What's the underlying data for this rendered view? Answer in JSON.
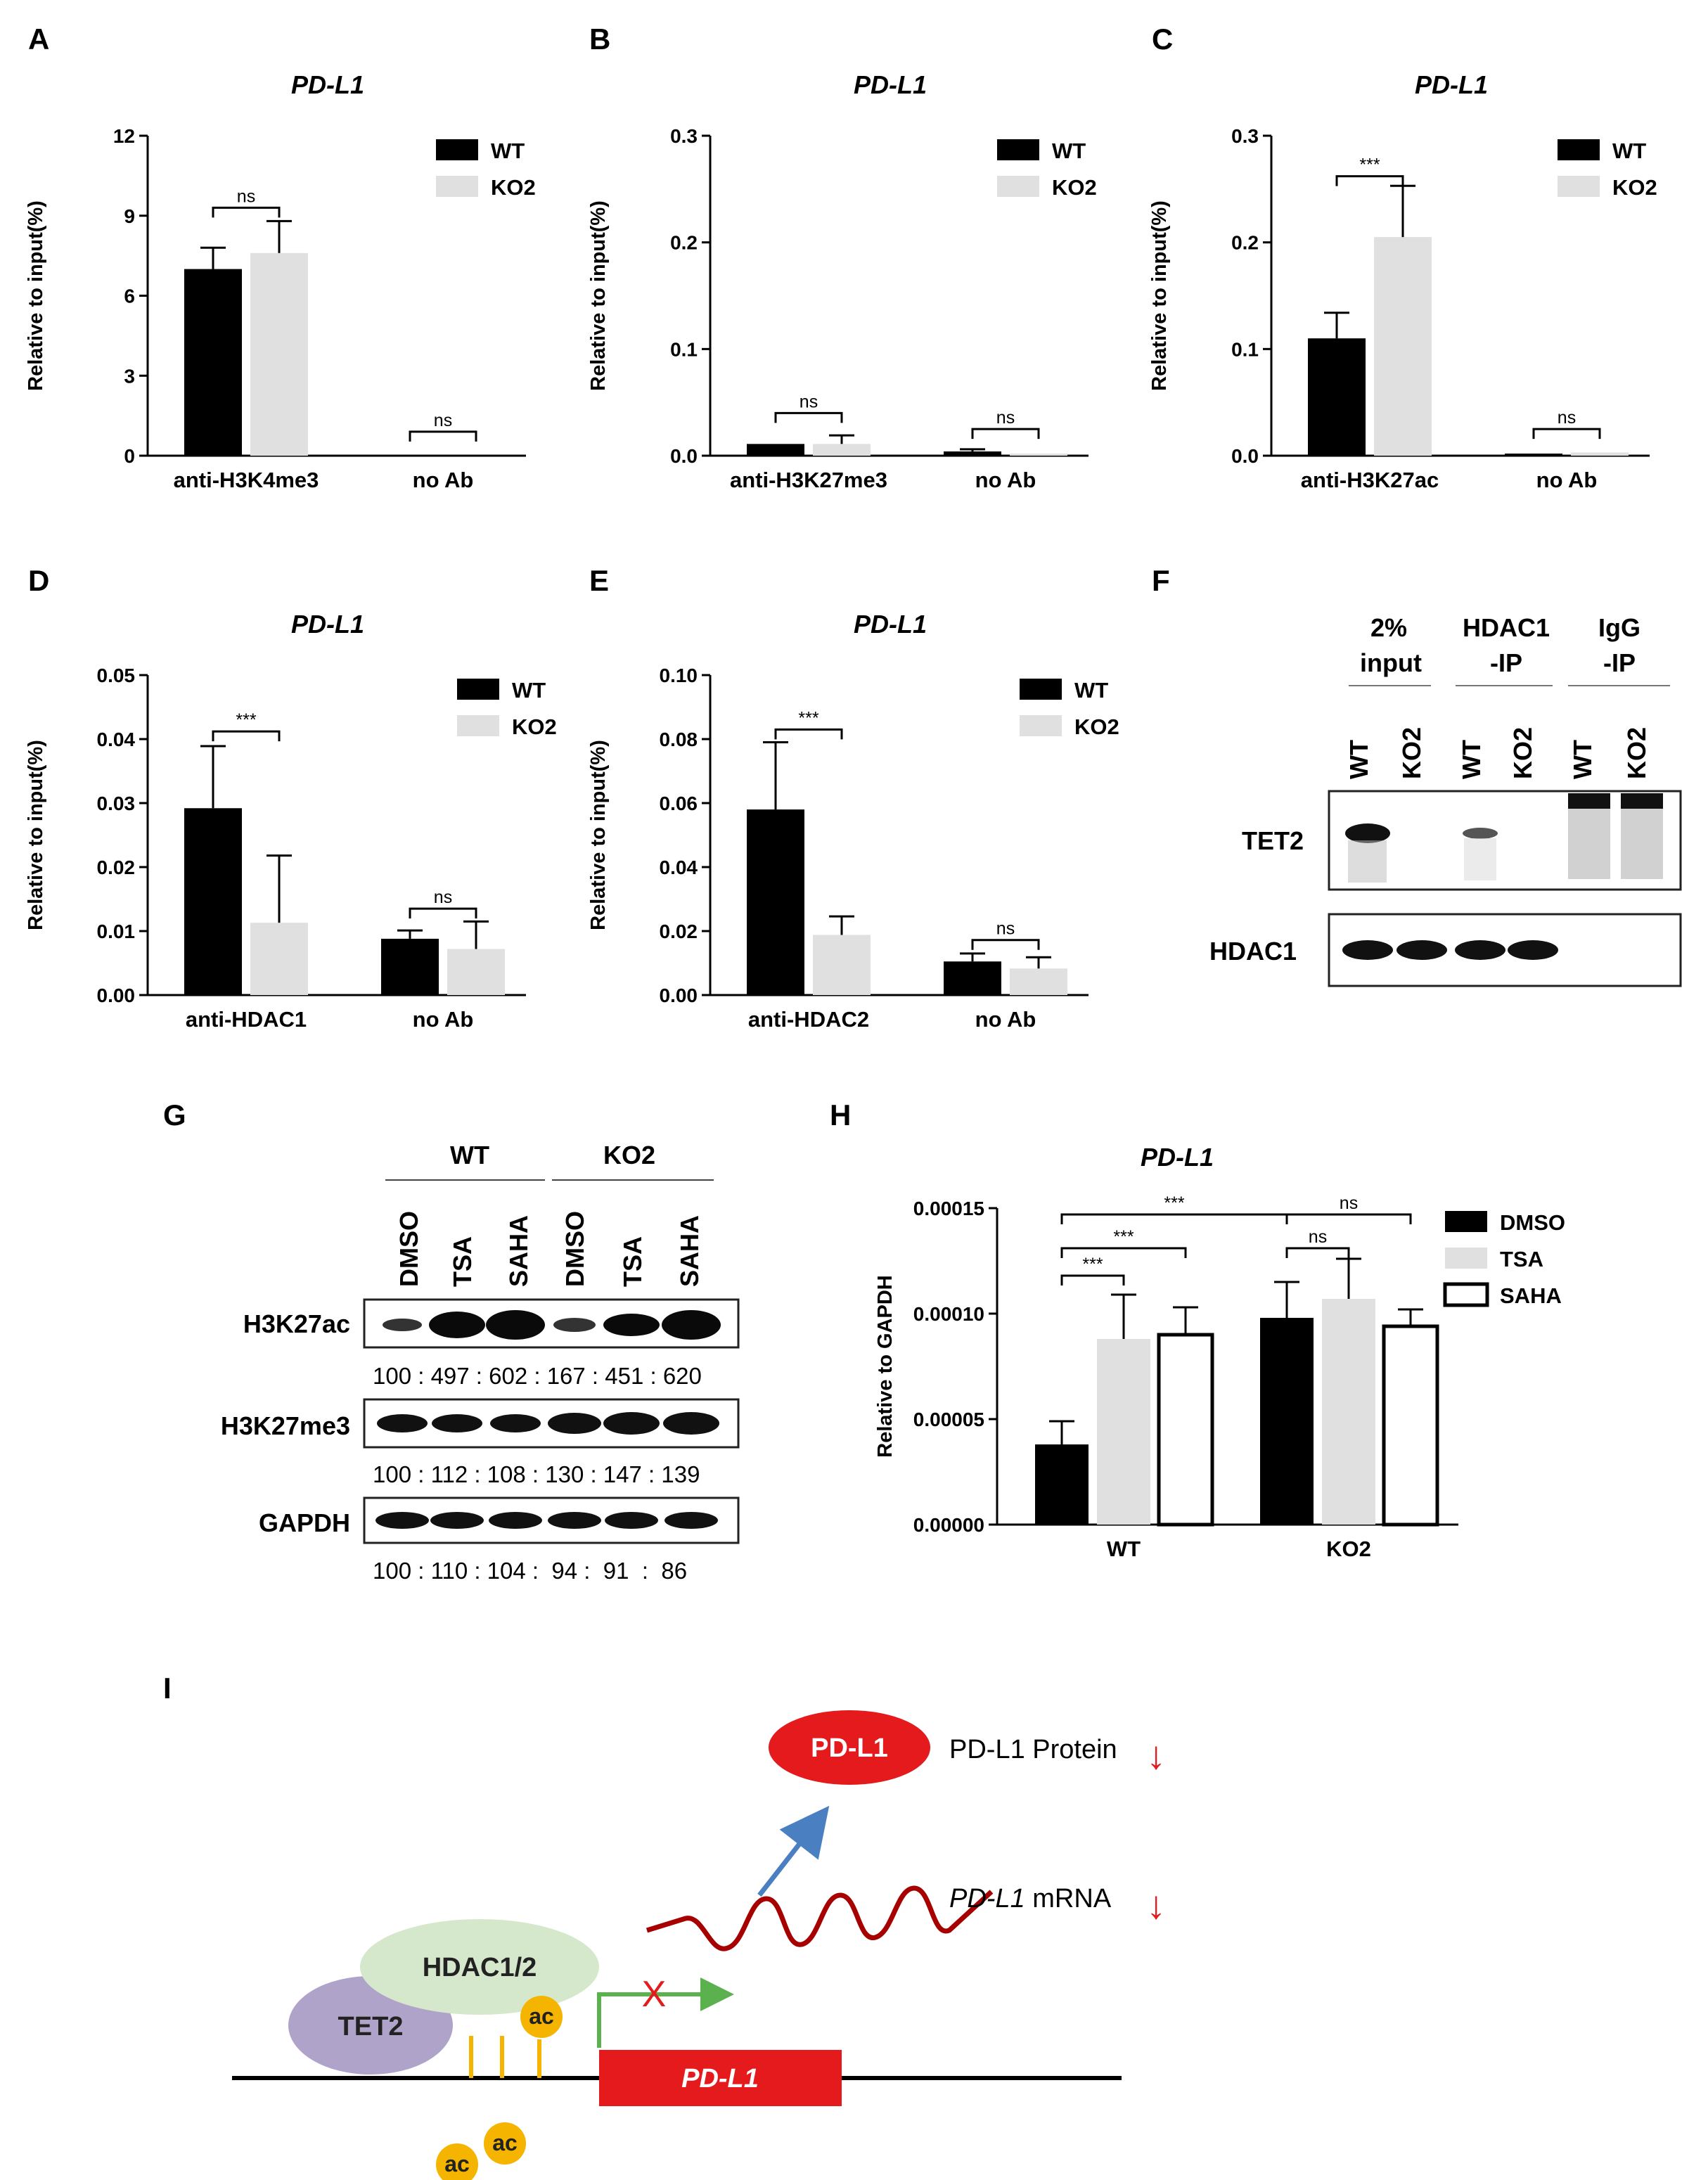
{
  "panels": {
    "A": "A",
    "B": "B",
    "C": "C",
    "D": "D",
    "E": "E",
    "F": "F",
    "G": "G",
    "H": "H",
    "I": "I"
  },
  "chart_data": [
    {
      "id": "A",
      "type": "bar",
      "title": "PD-L1",
      "ylabel": "Relative to input(%)",
      "ylim": [
        0,
        12
      ],
      "yticks": [
        "0",
        "3",
        "6",
        "9",
        "12"
      ],
      "categories": [
        "anti-H3K4me3",
        "no Ab"
      ],
      "series": [
        {
          "name": "WT",
          "color": "#000000",
          "values": [
            7.0,
            0.0
          ],
          "errors": [
            0.8,
            0.0
          ]
        },
        {
          "name": "KO2",
          "color": "#e0e0e0",
          "values": [
            7.6,
            0.0
          ],
          "errors": [
            1.2,
            0.0
          ]
        }
      ],
      "significance": [
        {
          "label": "ns",
          "category": 0,
          "y": 9.3
        },
        {
          "label": "ns",
          "category": 1,
          "y": 0.9
        }
      ],
      "legend": "top-right"
    },
    {
      "id": "B",
      "type": "bar",
      "title": "PD-L1",
      "ylabel": "Relative to input(%)",
      "ylim": [
        0,
        0.3
      ],
      "yticks": [
        "0.0",
        "0.1",
        "0.2",
        "0.3"
      ],
      "categories": [
        "anti-H3K27me3",
        "no Ab"
      ],
      "series": [
        {
          "name": "WT",
          "color": "#000000",
          "values": [
            0.011,
            0.004
          ],
          "errors": [
            0.0,
            0.002
          ]
        },
        {
          "name": "KO2",
          "color": "#e0e0e0",
          "values": [
            0.011,
            0.002
          ],
          "errors": [
            0.008,
            0.0
          ]
        }
      ],
      "significance": [
        {
          "label": "ns",
          "category": 0,
          "y": 0.04
        },
        {
          "label": "ns",
          "category": 1,
          "y": 0.025
        }
      ],
      "legend": "top-right"
    },
    {
      "id": "C",
      "type": "bar",
      "title": "PD-L1",
      "ylabel": "Relative to input(%)",
      "ylim": [
        0,
        0.3
      ],
      "yticks": [
        "0.0",
        "0.1",
        "0.2",
        "0.3"
      ],
      "categories": [
        "anti-H3K27ac",
        "no Ab"
      ],
      "series": [
        {
          "name": "WT",
          "color": "#000000",
          "values": [
            0.11,
            0.002
          ],
          "errors": [
            0.024,
            0.0
          ]
        },
        {
          "name": "KO2",
          "color": "#e0e0e0",
          "values": [
            0.205,
            0.003
          ],
          "errors": [
            0.048,
            0.0
          ]
        }
      ],
      "significance": [
        {
          "label": "***",
          "category": 0,
          "y": 0.262
        },
        {
          "label": "ns",
          "category": 1,
          "y": 0.025
        }
      ],
      "legend": "top-right"
    },
    {
      "id": "D",
      "type": "bar",
      "title": "PD-L1",
      "ylabel": "Relative to input(%)",
      "ylim": [
        0,
        0.05
      ],
      "yticks": [
        "0.00",
        "0.01",
        "0.02",
        "0.03",
        "0.04",
        "0.05"
      ],
      "categories": [
        "anti-HDAC1",
        "no Ab"
      ],
      "series": [
        {
          "name": "WT",
          "color": "#000000",
          "values": [
            0.0292,
            0.0088
          ],
          "errors": [
            0.0097,
            0.0013
          ]
        },
        {
          "name": "KO2",
          "color": "#e0e0e0",
          "values": [
            0.0113,
            0.0072
          ],
          "errors": [
            0.0105,
            0.0043
          ]
        }
      ],
      "significance": [
        {
          "label": "***",
          "category": 0,
          "y": 0.0412
        },
        {
          "label": "ns",
          "category": 1,
          "y": 0.0135
        }
      ],
      "legend": "top-right"
    },
    {
      "id": "E",
      "type": "bar",
      "title": "PD-L1",
      "ylabel": "Relative to input(%)",
      "ylim": [
        0,
        0.1
      ],
      "yticks": [
        "0.00",
        "0.02",
        "0.04",
        "0.06",
        "0.08",
        "0.10"
      ],
      "categories": [
        "anti-HDAC2",
        "no Ab"
      ],
      "series": [
        {
          "name": "WT",
          "color": "#000000",
          "values": [
            0.058,
            0.0105
          ],
          "errors": [
            0.021,
            0.0025
          ]
        },
        {
          "name": "KO2",
          "color": "#e0e0e0",
          "values": [
            0.0188,
            0.0083
          ],
          "errors": [
            0.0058,
            0.0035
          ]
        }
      ],
      "significance": [
        {
          "label": "***",
          "category": 0,
          "y": 0.083
        },
        {
          "label": "ns",
          "category": 1,
          "y": 0.0172
        }
      ],
      "legend": "top-right"
    },
    {
      "id": "H",
      "type": "bar",
      "title": "PD-L1",
      "ylabel": "Relative to GAPDH",
      "ylim": [
        0,
        0.00015
      ],
      "yticks": [
        "0.00000",
        "0.00005",
        "0.00010",
        "0.00015"
      ],
      "categories": [
        "WT",
        "KO2"
      ],
      "series": [
        {
          "name": "DMSO",
          "color": "#000000",
          "values": [
            3.8e-05,
            9.8e-05
          ],
          "errors": [
            1.1e-05,
            1.7e-05
          ]
        },
        {
          "name": "TSA",
          "color": "#e0e0e0",
          "values": [
            8.8e-05,
            0.000107
          ],
          "errors": [
            2.1e-05,
            1.9e-05
          ]
        },
        {
          "name": "SAHA",
          "color": "#ffffff",
          "values": [
            9e-05,
            9.4e-05
          ],
          "errors": [
            1.3e-05,
            8e-06
          ]
        }
      ],
      "significance": [
        {
          "label": "***",
          "from": [
            0,
            0
          ],
          "to": [
            0,
            1
          ],
          "y": 0.000118
        },
        {
          "label": "***",
          "from": [
            0,
            0
          ],
          "to": [
            0,
            2
          ],
          "y": 0.000131
        },
        {
          "label": "***",
          "from": [
            0,
            0
          ],
          "to": [
            1,
            0
          ],
          "y": 0.000147
        },
        {
          "label": "ns",
          "from": [
            1,
            0
          ],
          "to": [
            1,
            1
          ],
          "y": 0.000131
        },
        {
          "label": "ns",
          "from": [
            1,
            0
          ],
          "to": [
            1,
            2
          ],
          "y": 0.000147
        }
      ],
      "legend": "right"
    }
  ],
  "blot_F": {
    "groups": [
      "2%|input",
      "HDAC1|-IP",
      "IgG|-IP"
    ],
    "lanes": [
      "WT",
      "KO2",
      "WT",
      "KO2",
      "WT",
      "KO2"
    ],
    "rows": [
      "TET2",
      "HDAC1"
    ]
  },
  "blot_G": {
    "groups": [
      "WT",
      "KO2"
    ],
    "lanes": [
      "DMSO",
      "TSA",
      "SAHA",
      "DMSO",
      "TSA",
      "SAHA"
    ],
    "rows": [
      {
        "label": "H3K27ac",
        "quant": "100 : 497 : 602 : 167 : 451 : 620"
      },
      {
        "label": "H3K27me3",
        "quant": "100 : 112 : 108 : 130 : 147 : 139"
      },
      {
        "label": "GAPDH",
        "quant": "100 : 110 : 104 :  94 :  91  :  86"
      }
    ]
  },
  "schematic_I": {
    "protein": "PD-L1",
    "protein_label": "PD-L1 Protein",
    "mrna_label_italic": "PD-L1",
    "mrna_label_rest": " mRNA",
    "down_arrow": "↓",
    "hdac": "HDAC1/2",
    "tet2": "TET2",
    "ac": "ac",
    "gene": "PD-L1",
    "block": "X"
  }
}
